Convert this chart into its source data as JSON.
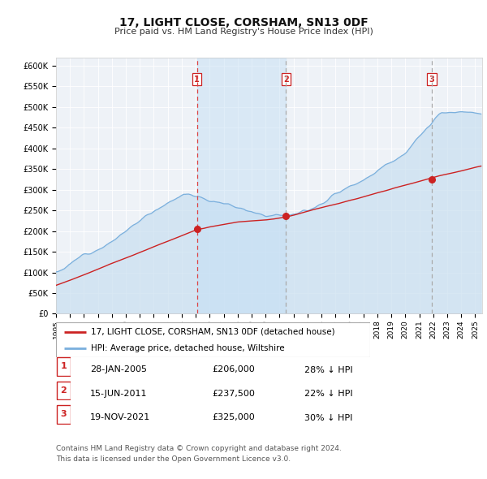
{
  "title": "17, LIGHT CLOSE, CORSHAM, SN13 0DF",
  "subtitle": "Price paid vs. HM Land Registry's House Price Index (HPI)",
  "ylim": [
    0,
    620000
  ],
  "yticks": [
    0,
    50000,
    100000,
    150000,
    200000,
    250000,
    300000,
    350000,
    400000,
    450000,
    500000,
    550000,
    600000
  ],
  "xlim_start": 1995.0,
  "xlim_end": 2025.5,
  "hpi_fill_color": "#c8dff0",
  "hpi_line_color": "#7aafdd",
  "price_color": "#cc2222",
  "vline1_color": "#dd4444",
  "vline23_color": "#aaaaaa",
  "sale1_date": 2005.08,
  "sale1_price": 206000,
  "sale2_date": 2011.46,
  "sale2_price": 237500,
  "sale3_date": 2021.89,
  "sale3_price": 325000,
  "legend_label_price": "17, LIGHT CLOSE, CORSHAM, SN13 0DF (detached house)",
  "legend_label_hpi": "HPI: Average price, detached house, Wiltshire",
  "table_row1": [
    "1",
    "28-JAN-2005",
    "£206,000",
    "28% ↓ HPI"
  ],
  "table_row2": [
    "2",
    "15-JUN-2011",
    "£237,500",
    "22% ↓ HPI"
  ],
  "table_row3": [
    "3",
    "19-NOV-2021",
    "£325,000",
    "30% ↓ HPI"
  ],
  "footnote1": "Contains HM Land Registry data © Crown copyright and database right 2024.",
  "footnote2": "This data is licensed under the Open Government Licence v3.0.",
  "background_color": "#ffffff",
  "plot_bg_color": "#eef2f7",
  "grid_color": "#ffffff",
  "title_fontsize": 10,
  "subtitle_fontsize": 8,
  "tick_fontsize": 7,
  "xtick_fontsize": 6.5
}
